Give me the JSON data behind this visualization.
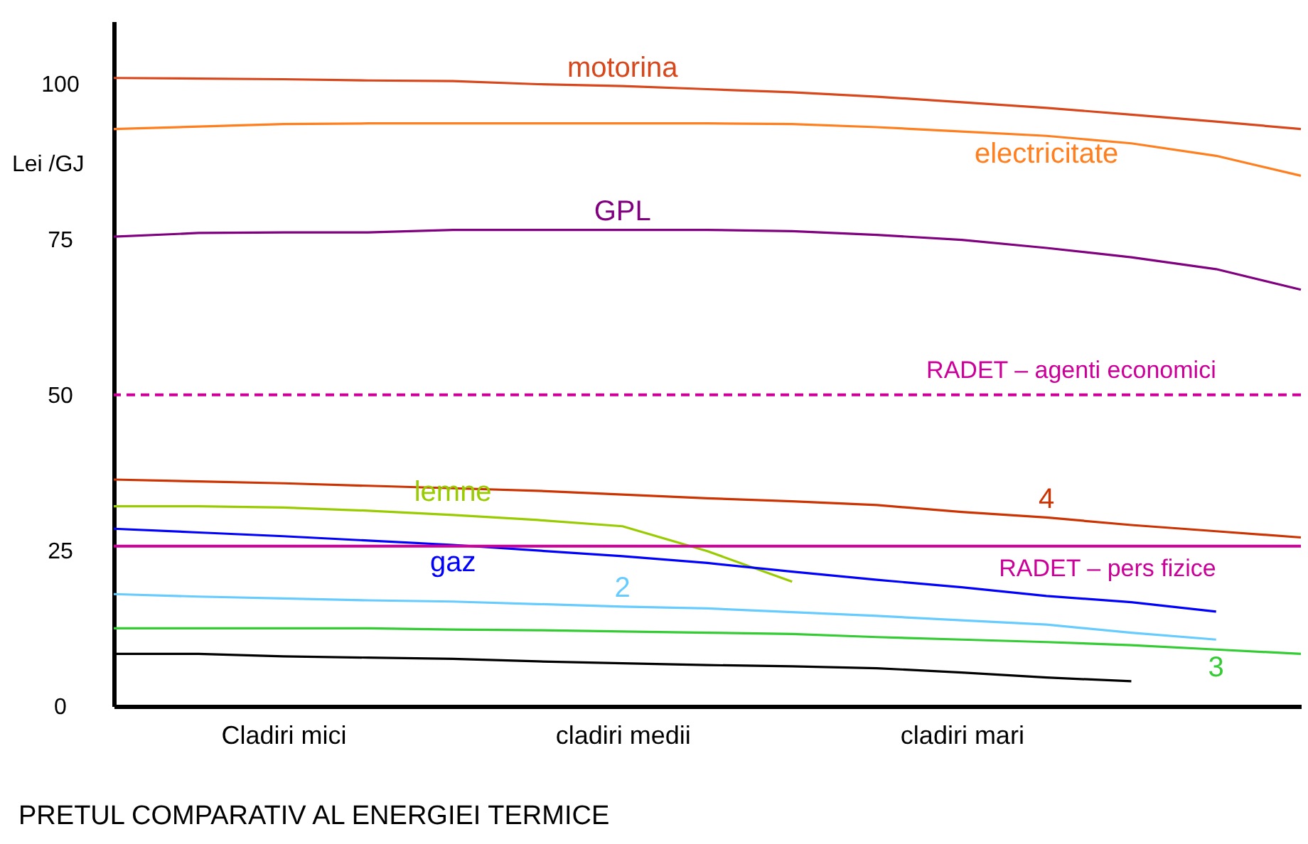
{
  "chart_data": {
    "type": "line",
    "title": "PRETUL COMPARATIV AL ENERGIEI TERMICE",
    "ylabel": "Lei /GJ",
    "categories": [
      null,
      null,
      "Cladiri mici",
      null,
      null,
      null,
      "cladiri medii",
      null,
      null,
      null,
      "cladiri mari",
      null,
      null,
      null,
      null
    ],
    "ylim": [
      0,
      110
    ],
    "yticks": [
      0,
      25,
      50,
      75,
      100
    ],
    "grid": false,
    "line_style": "solid",
    "series": [
      {
        "name": "motorina",
        "color": "#d8461b",
        "values": [
          100.9,
          100.8,
          100.7,
          100.5,
          100.4,
          99.9,
          99.6,
          99.1,
          98.6,
          97.9,
          97.0,
          96.1,
          95.0,
          93.9,
          92.7
        ]
      },
      {
        "name": "electricitate",
        "color": "#ff7f1e",
        "values": [
          92.7,
          93.1,
          93.5,
          93.6,
          93.6,
          93.6,
          93.6,
          93.6,
          93.5,
          93.0,
          92.3,
          91.6,
          90.4,
          88.4,
          85.2
        ]
      },
      {
        "name": "GPL",
        "color": "#800080",
        "values": [
          75.4,
          76.0,
          76.1,
          76.1,
          76.5,
          76.5,
          76.5,
          76.5,
          76.3,
          75.7,
          74.9,
          73.6,
          72.1,
          70.2,
          66.9
        ]
      },
      {
        "name": "4",
        "color": "#cc3300",
        "values": [
          36.4,
          36.1,
          35.8,
          35.4,
          35.0,
          34.6,
          34.0,
          33.4,
          32.9,
          32.3,
          31.2,
          30.3,
          29.1,
          28.1,
          27.1
        ]
      },
      {
        "name": "lemne",
        "color": "#99cc00",
        "values": [
          32.1,
          32.1,
          31.9,
          31.4,
          30.7,
          29.9,
          28.9,
          24.9,
          20.0,
          null,
          null,
          null,
          null,
          null,
          null
        ]
      },
      {
        "name": "gaz",
        "color": "#0000ff",
        "values": [
          28.5,
          27.9,
          27.3,
          26.6,
          25.9,
          25.0,
          24.1,
          23.0,
          21.6,
          20.3,
          19.1,
          17.7,
          16.7,
          15.2,
          null
        ]
      },
      {
        "name": "2",
        "color": "#66ccff",
        "values": [
          18.0,
          17.6,
          17.3,
          17.0,
          16.8,
          16.4,
          16.0,
          15.7,
          15.1,
          14.5,
          13.8,
          13.1,
          11.8,
          10.7,
          null
        ]
      },
      {
        "name": "3",
        "color": "#33cc33",
        "values": [
          12.5,
          12.5,
          12.5,
          12.5,
          12.3,
          12.2,
          12.0,
          11.8,
          11.6,
          11.1,
          10.7,
          10.3,
          9.8,
          9.1,
          8.4
        ]
      },
      {
        "color": "#000000",
        "values": [
          8.4,
          8.4,
          8.0,
          7.8,
          7.6,
          7.2,
          6.9,
          6.6,
          6.4,
          6.1,
          5.4,
          4.6,
          4.0,
          null,
          null
        ]
      }
    ],
    "ref_lines": [
      {
        "axis": "y",
        "value": 50,
        "label": "RADET – agenti economici",
        "color": "#cc0099",
        "line_style": "dashed"
      },
      {
        "axis": "y",
        "value": 25.7,
        "label": "RADET – pers fizice",
        "color": "#cc0099",
        "line_style": "solid"
      }
    ]
  }
}
